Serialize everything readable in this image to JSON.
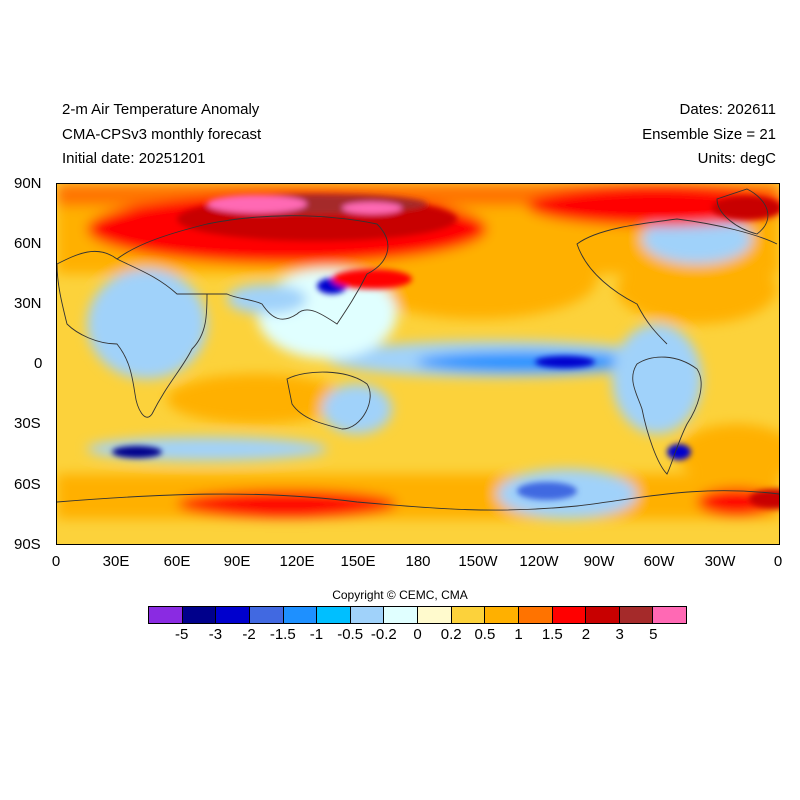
{
  "header": {
    "title": "2-m Air Temperature Anomaly",
    "model": "CMA-CPSv3 monthly forecast",
    "initial_date": "Initial date: 20251201",
    "dates": "Dates: 202611",
    "ensemble": "Ensemble Size = 21",
    "units": "Units: degC"
  },
  "map": {
    "lat_ticks": [
      "90N",
      "60N",
      "30N",
      "0",
      "30S",
      "60S",
      "90S"
    ],
    "lon_ticks": [
      "0",
      "30E",
      "60E",
      "90E",
      "120E",
      "150E",
      "180",
      "150W",
      "120W",
      "90W",
      "60W",
      "30W",
      "0"
    ]
  },
  "copyright": "Copyright © CEMC, CMA",
  "colorbar": {
    "colors": [
      "#8a2be2",
      "#00008b",
      "#0000cd",
      "#4169e1",
      "#1e90ff",
      "#00bfff",
      "#a0d2fa",
      "#e0ffff",
      "#fffacd",
      "#fcd23b",
      "#ffb000",
      "#ff7300",
      "#ff0000",
      "#c80000",
      "#a52a2a",
      "#ff69b4"
    ],
    "labels": [
      "-5",
      "-3",
      "-2",
      "-1.5",
      "-1",
      "-0.5",
      "-0.2",
      "0",
      "0.2",
      "0.5",
      "1",
      "1.5",
      "2",
      "3",
      "5"
    ]
  }
}
